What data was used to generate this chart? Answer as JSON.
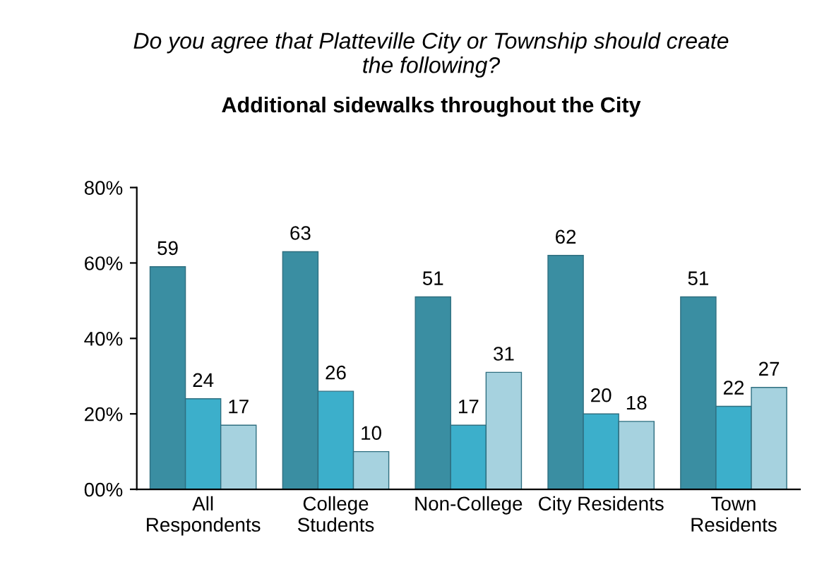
{
  "chart_data": {
    "type": "bar",
    "title": "Do you agree that Platteville City or Township should create\nthe following?",
    "subtitle": "Additional sidewalks throughout the City",
    "categories": [
      "All\nRespondents",
      "College\nStudents",
      "Non-College",
      "City Residents",
      "Town\nResidents"
    ],
    "series": [
      {
        "color": "#3a8ea2",
        "values": [
          59,
          63,
          51,
          62,
          51
        ]
      },
      {
        "color": "#3cafcb",
        "values": [
          24,
          26,
          17,
          20,
          22
        ]
      },
      {
        "color": "#a6d2df",
        "values": [
          17,
          10,
          31,
          18,
          27
        ]
      }
    ],
    "ylim": [
      0,
      80
    ],
    "yticks": [
      {
        "value": 0,
        "label": "00%"
      },
      {
        "value": 20,
        "label": "20%"
      },
      {
        "value": 40,
        "label": "40%"
      },
      {
        "value": 60,
        "label": "60%"
      },
      {
        "value": 80,
        "label": "80%"
      }
    ],
    "data_labels": true,
    "grid": false
  }
}
